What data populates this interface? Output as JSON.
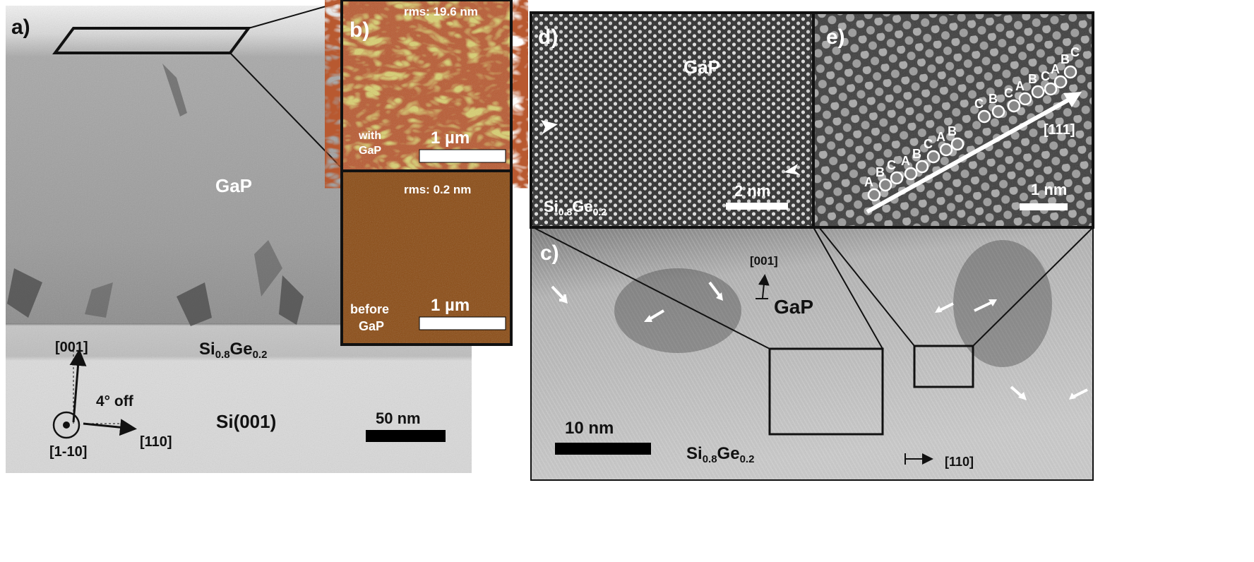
{
  "panel_a": {
    "label": "a)",
    "gap_label": "GaP",
    "sige_label": {
      "base1": "Si",
      "sub1": "0.8",
      "base2": "Ge",
      "sub2": "0.2"
    },
    "substrate_label": "Si(001)",
    "axis_001": "[001]",
    "axis_110": "[110]",
    "axis_1m10": "[1-10]",
    "offcut": "4° off",
    "scale_bar": "50 nm"
  },
  "panel_b": {
    "label": "b)",
    "top": {
      "rms": "rms: 19.6 nm",
      "caption_line1": "with",
      "caption_line2": "GaP",
      "scale_bar": "1 µm"
    },
    "bottom": {
      "rms": "rms: 0.2 nm",
      "caption_line1": "before",
      "caption_line2": "GaP",
      "scale_bar": "1 µm"
    },
    "colors": {
      "afm_light": "#e6e07a",
      "afm_dark": "#7a1a08",
      "afm_flat": "#8a4a12"
    }
  },
  "panel_c": {
    "label": "c)",
    "axis_001": "[001]",
    "gap_label": "GaP",
    "sige_label": {
      "base1": "Si",
      "sub1": "0.8",
      "base2": "Ge",
      "sub2": "0.2"
    },
    "axis_110": "[110]",
    "scale_bar": "10 nm"
  },
  "panel_d": {
    "label": "d)",
    "gap_label": "GaP",
    "sige_label": {
      "base1": "Si",
      "sub1": "0.8",
      "base2": "Ge",
      "sub2": "0.2"
    },
    "scale_bar": "2 nm"
  },
  "panel_e": {
    "label": "e)",
    "stacking": [
      "A",
      "B",
      "C",
      "A",
      "B",
      "C",
      "A",
      "B",
      "C",
      "B",
      "C",
      "A",
      "B",
      "C",
      "A",
      "B",
      "C"
    ],
    "direction": "[111]",
    "scale_bar": "1 nm"
  }
}
